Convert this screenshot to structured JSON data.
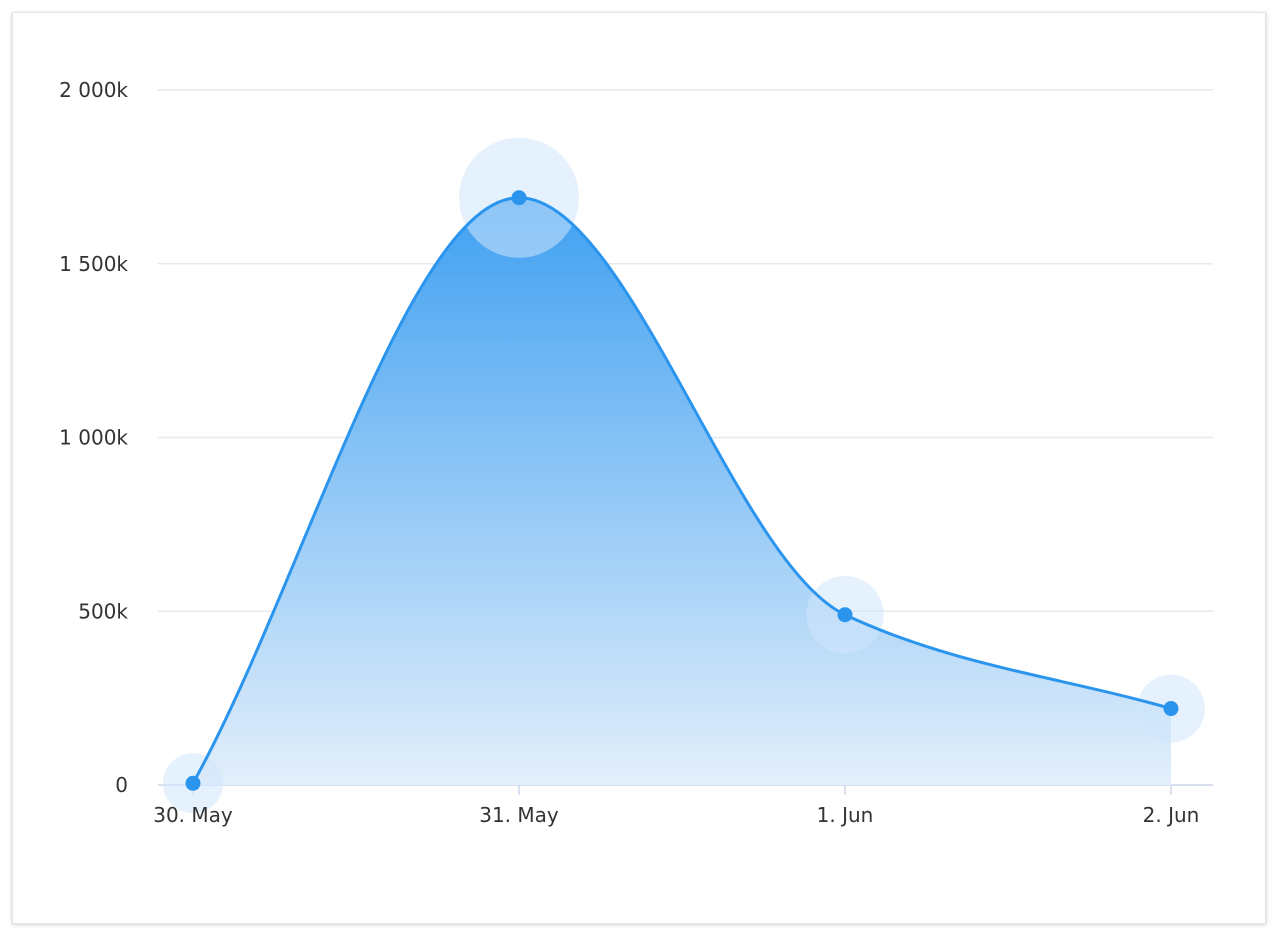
{
  "chart_data": {
    "type": "area",
    "title": "",
    "xlabel": "",
    "ylabel": "",
    "categories": [
      "30. May",
      "31. May",
      "1. Jun",
      "2. Jun"
    ],
    "series": [
      {
        "values": [
          5,
          1690,
          490,
          220
        ]
      }
    ],
    "y_unit": "k",
    "ylim": [
      0,
      2000
    ],
    "y_ticks": [
      0,
      500,
      1000,
      1500,
      2000
    ],
    "y_tick_labels": [
      "0",
      "500k",
      "1 000k",
      "1 500k",
      "2 000k"
    ],
    "grid": true,
    "legend": "none",
    "colors": {
      "line": "#2b95ee",
      "marker": "#2b95ee",
      "area_top": "#3fa0f1",
      "area_bottom": "#e3effb",
      "halo": "#cfe5fb",
      "grid": "#e6e9ee",
      "axis": "#ccd6eb"
    }
  }
}
